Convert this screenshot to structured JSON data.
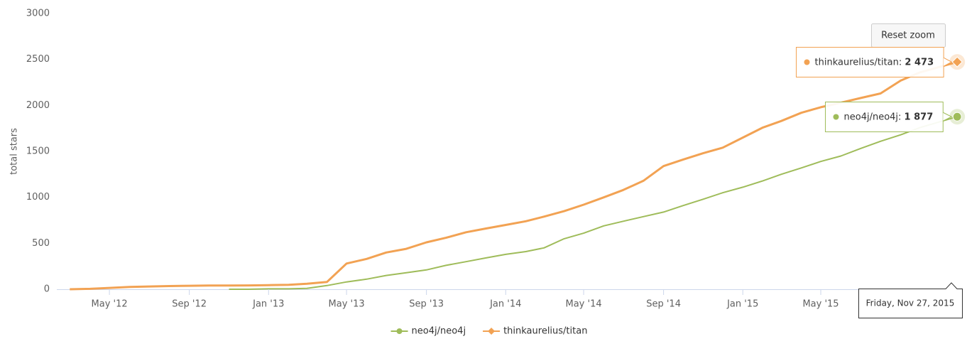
{
  "chart_data": {
    "type": "line",
    "y_axis_label": "total stars",
    "x": [
      "2012-03",
      "2012-04",
      "2012-05",
      "2012-06",
      "2012-07",
      "2012-08",
      "2012-09",
      "2012-10",
      "2012-11",
      "2012-12",
      "2013-01",
      "2013-02",
      "2013-03",
      "2013-04",
      "2013-05",
      "2013-06",
      "2013-07",
      "2013-08",
      "2013-09",
      "2013-10",
      "2013-11",
      "2013-12",
      "2014-01",
      "2014-02",
      "2014-03",
      "2014-04",
      "2014-05",
      "2014-06",
      "2014-07",
      "2014-08",
      "2014-09",
      "2014-10",
      "2014-11",
      "2014-12",
      "2015-01",
      "2015-02",
      "2015-03",
      "2015-04",
      "2015-05",
      "2015-06",
      "2015-07",
      "2015-08",
      "2015-09",
      "2015-10",
      "2015-11-27"
    ],
    "series": [
      {
        "name": "neo4j/neo4j",
        "color": "#9fbc5a",
        "marker": "circle",
        "values": [
          null,
          null,
          null,
          null,
          null,
          null,
          null,
          null,
          0,
          0,
          5,
          5,
          10,
          40,
          80,
          110,
          150,
          180,
          210,
          260,
          300,
          340,
          380,
          410,
          450,
          550,
          610,
          690,
          740,
          790,
          840,
          910,
          980,
          1050,
          1110,
          1180,
          1250,
          1320,
          1390,
          1450,
          1530,
          1610,
          1680,
          1760,
          1877
        ],
        "value_labels": [
          null,
          null,
          null,
          null,
          null,
          null,
          null,
          null,
          null,
          null,
          null,
          null,
          null,
          null,
          null,
          null,
          null,
          null,
          null,
          null,
          null,
          null,
          null,
          null,
          null,
          null,
          null,
          null,
          null,
          null,
          null,
          null,
          null,
          null,
          null,
          null,
          null,
          null,
          null,
          null,
          null,
          null,
          null,
          null,
          "1 877"
        ]
      },
      {
        "name": "thinkaurelius/titan",
        "color": "#f2a253",
        "marker": "diamond",
        "values": [
          0,
          5,
          15,
          25,
          30,
          35,
          38,
          40,
          40,
          42,
          45,
          48,
          60,
          80,
          280,
          330,
          400,
          440,
          510,
          560,
          620,
          660,
          700,
          740,
          790,
          850,
          920,
          1000,
          1080,
          1180,
          1340,
          1410,
          1480,
          1540,
          1650,
          1760,
          1830,
          1920,
          1980,
          2030,
          2080,
          2130,
          2270,
          2360,
          2473
        ],
        "value_labels": [
          null,
          null,
          null,
          null,
          null,
          null,
          null,
          null,
          null,
          null,
          null,
          null,
          null,
          null,
          null,
          null,
          null,
          null,
          null,
          null,
          null,
          null,
          null,
          null,
          null,
          null,
          null,
          null,
          null,
          null,
          null,
          null,
          null,
          null,
          null,
          null,
          null,
          null,
          null,
          null,
          null,
          null,
          null,
          null,
          "2 473"
        ]
      }
    ],
    "xlim": [
      "2012-02-10",
      "2015-11-29"
    ],
    "xticks": [
      {
        "value": "2012-05",
        "label": "May '12"
      },
      {
        "value": "2012-09",
        "label": "Sep '12"
      },
      {
        "value": "2013-01",
        "label": "Jan '13"
      },
      {
        "value": "2013-05",
        "label": "May '13"
      },
      {
        "value": "2013-09",
        "label": "Sep '13"
      },
      {
        "value": "2014-01",
        "label": "Jan '14"
      },
      {
        "value": "2014-05",
        "label": "May '14"
      },
      {
        "value": "2014-09",
        "label": "Sep '14"
      },
      {
        "value": "2015-01",
        "label": "Jan '15"
      },
      {
        "value": "2015-05",
        "label": "May '15"
      }
    ],
    "ylim": [
      0,
      3000
    ],
    "yticks": [
      0,
      500,
      1000,
      1500,
      2000,
      2500,
      3000
    ],
    "grid": false,
    "legend": "bottom",
    "tooltip": {
      "date": "Friday, Nov 27, 2015",
      "separator": ": "
    },
    "button": "Reset zoom"
  }
}
